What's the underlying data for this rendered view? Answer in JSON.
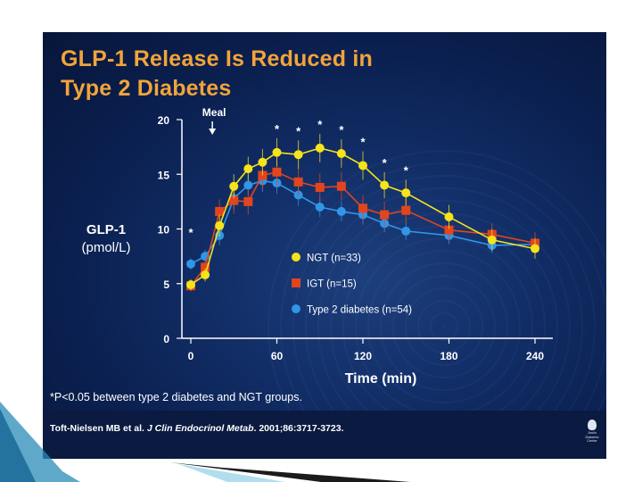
{
  "slide": {
    "title_line1": "GLP-1 Release Is Reduced in",
    "title_line2": "Type 2 Diabetes",
    "footnote": "*P<0.05 between type 2 diabetes and NGT groups.",
    "citation_pre": "Toft-Nielsen MB et al. ",
    "citation_journal": "J Clin Endocrinol Metab",
    "citation_post": ". 2001;86:3717-3723.",
    "logo_lines": [
      "Joslin",
      "Diabetes",
      "Center"
    ]
  },
  "colors": {
    "ngt": "#f5e31c",
    "igt": "#e2451d",
    "t2d": "#2f96e8",
    "title": "#f2a43a"
  },
  "chart_data": {
    "type": "line",
    "title": "GLP-1 Release Is Reduced in Type 2 Diabetes",
    "xlabel": "Time (min)",
    "ylabel_line1": "GLP-1",
    "ylabel_line2": "(pmol/L)",
    "xlim": [
      0,
      240
    ],
    "ylim": [
      0,
      20
    ],
    "xticks": [
      0,
      60,
      120,
      180,
      240
    ],
    "yticks": [
      0,
      5,
      10,
      15,
      20
    ],
    "annotation": {
      "label": "Meal",
      "x": 15
    },
    "series": [
      {
        "name": "NGT (n=33)",
        "color_key": "ngt",
        "x": [
          0,
          10,
          20,
          30,
          40,
          50,
          60,
          75,
          90,
          105,
          120,
          135,
          150,
          180,
          210,
          240
        ],
        "y": [
          4.9,
          5.8,
          10.3,
          13.9,
          15.5,
          16.1,
          17.0,
          16.8,
          17.4,
          16.9,
          15.8,
          14.0,
          13.3,
          11.1,
          9.0,
          8.2
        ],
        "err": [
          0.5,
          0.6,
          1.0,
          1.1,
          1.1,
          1.2,
          1.3,
          1.3,
          1.3,
          1.3,
          1.3,
          1.2,
          1.2,
          1.1,
          1.0,
          0.9
        ]
      },
      {
        "name": "IGT (n=15)",
        "color_key": "igt",
        "x": [
          0,
          10,
          20,
          30,
          40,
          50,
          60,
          75,
          90,
          105,
          120,
          135,
          150,
          180,
          210,
          240
        ],
        "y": [
          4.8,
          6.5,
          11.6,
          12.6,
          12.5,
          14.9,
          15.2,
          14.3,
          13.8,
          13.9,
          11.9,
          11.3,
          11.7,
          9.9,
          9.5,
          8.7
        ],
        "err": [
          0.5,
          0.6,
          1.1,
          1.2,
          1.2,
          1.3,
          1.3,
          1.3,
          1.3,
          1.3,
          1.2,
          1.2,
          1.2,
          1.1,
          1.0,
          1.0
        ]
      },
      {
        "name": "Type 2 diabetes (n=54)",
        "color_key": "t2d",
        "x": [
          0,
          10,
          20,
          30,
          40,
          50,
          60,
          75,
          90,
          105,
          120,
          135,
          150,
          180,
          210,
          240
        ],
        "y": [
          6.8,
          7.5,
          9.4,
          12.8,
          14.0,
          14.4,
          14.2,
          13.1,
          12.0,
          11.6,
          11.3,
          10.5,
          9.8,
          9.4,
          8.5,
          8.6
        ],
        "err": [
          0.5,
          0.6,
          0.9,
          1.0,
          1.0,
          1.0,
          1.0,
          1.0,
          0.9,
          0.9,
          0.9,
          0.8,
          0.8,
          0.8,
          0.7,
          0.7
        ]
      }
    ],
    "significance_markers": {
      "symbol": "*",
      "x": [
        0,
        60,
        75,
        90,
        105,
        120,
        135,
        150
      ]
    }
  }
}
